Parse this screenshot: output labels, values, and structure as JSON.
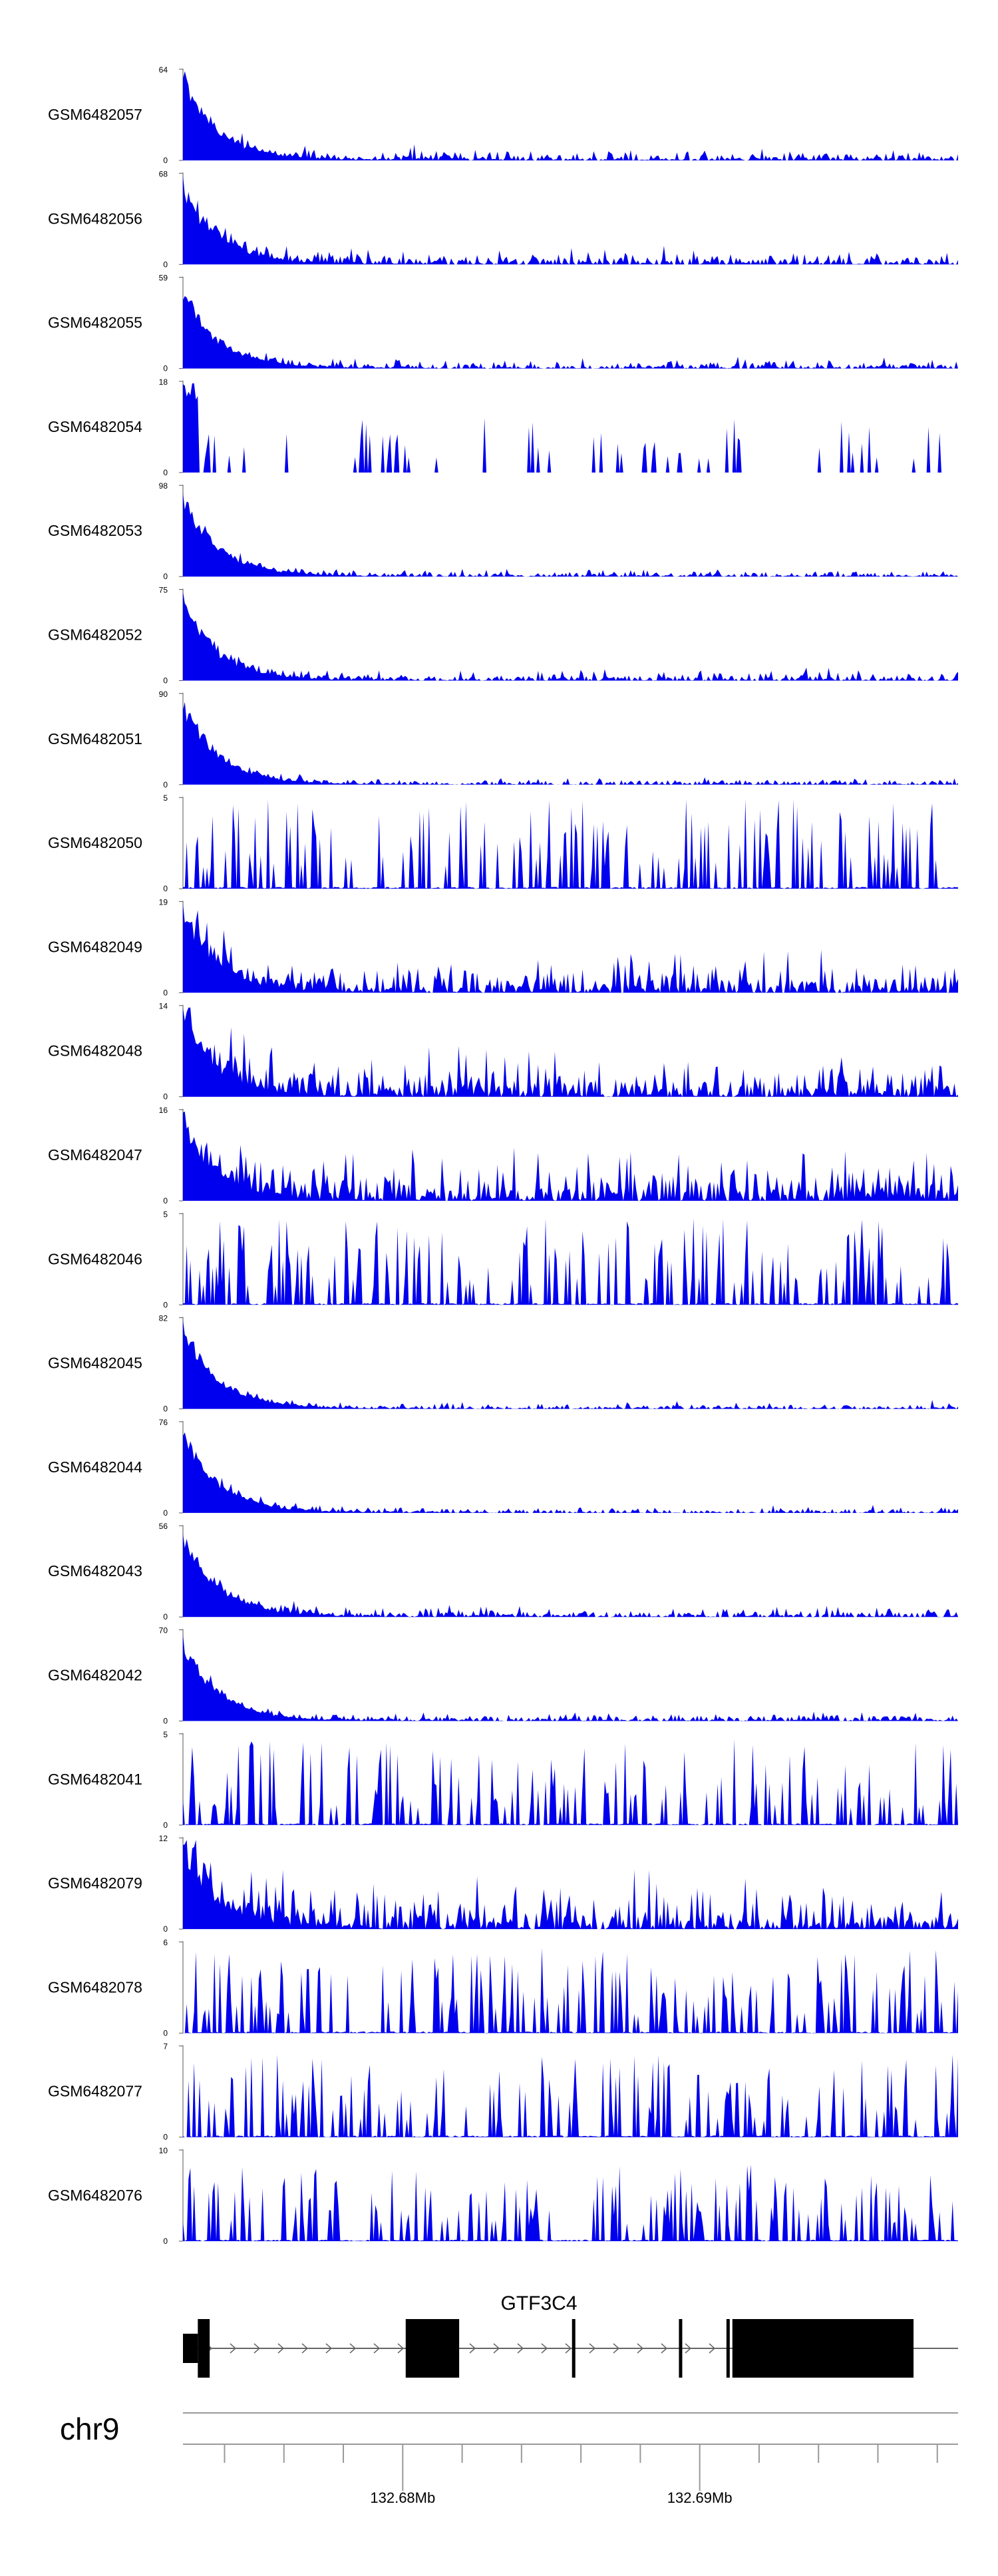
{
  "chart_data": {
    "type": "area",
    "color": "#0000ee",
    "tracks": [
      {
        "name": "GSM6482057",
        "ymax": 64,
        "ymin": 0,
        "profile": "decay",
        "tail": 0.08,
        "noise": 0.06,
        "peak": 1.0,
        "seed": 11
      },
      {
        "name": "GSM6482056",
        "ymax": 68,
        "ymin": 0,
        "profile": "decay",
        "tail": 0.12,
        "noise": 0.07,
        "peak": 0.95,
        "seed": 12
      },
      {
        "name": "GSM6482055",
        "ymax": 59,
        "ymin": 0,
        "profile": "decay",
        "tail": 0.07,
        "noise": 0.05,
        "peak": 0.95,
        "seed": 13
      },
      {
        "name": "GSM6482054",
        "ymax": 18,
        "ymin": 0,
        "profile": "sparse",
        "tail": 0.2,
        "noise": 0.45,
        "peak": 1.0,
        "seed": 14
      },
      {
        "name": "GSM6482053",
        "ymax": 98,
        "ymin": 0,
        "profile": "decay",
        "tail": 0.05,
        "noise": 0.04,
        "peak": 1.0,
        "seed": 15
      },
      {
        "name": "GSM6482052",
        "ymax": 75,
        "ymin": 0,
        "profile": "decay",
        "tail": 0.08,
        "noise": 0.05,
        "peak": 0.95,
        "seed": 16
      },
      {
        "name": "GSM6482051",
        "ymax": 90,
        "ymin": 0,
        "profile": "decay",
        "tail": 0.05,
        "noise": 0.04,
        "peak": 1.0,
        "seed": 17
      },
      {
        "name": "GSM6482050",
        "ymax": 5,
        "ymin": 0,
        "profile": "spiky",
        "tail": 0.3,
        "noise": 0.7,
        "peak": 1.0,
        "seed": 18
      },
      {
        "name": "GSM6482049",
        "ymax": 19,
        "ymin": 0,
        "profile": "decay",
        "tail": 0.3,
        "noise": 0.2,
        "peak": 1.0,
        "seed": 19
      },
      {
        "name": "GSM6482048",
        "ymax": 14,
        "ymin": 0,
        "profile": "decay",
        "tail": 0.3,
        "noise": 0.25,
        "peak": 1.0,
        "seed": 20
      },
      {
        "name": "GSM6482047",
        "ymax": 16,
        "ymin": 0,
        "profile": "decay",
        "tail": 0.35,
        "noise": 0.3,
        "peak": 0.9,
        "seed": 21
      },
      {
        "name": "GSM6482046",
        "ymax": 5,
        "ymin": 0,
        "profile": "spiky",
        "tail": 0.35,
        "noise": 0.65,
        "peak": 1.0,
        "seed": 22
      },
      {
        "name": "GSM6482045",
        "ymax": 82,
        "ymin": 0,
        "profile": "decay",
        "tail": 0.05,
        "noise": 0.04,
        "peak": 1.0,
        "seed": 23
      },
      {
        "name": "GSM6482044",
        "ymax": 76,
        "ymin": 0,
        "profile": "decay",
        "tail": 0.05,
        "noise": 0.04,
        "peak": 1.0,
        "seed": 24
      },
      {
        "name": "GSM6482043",
        "ymax": 56,
        "ymin": 0,
        "profile": "decay",
        "tail": 0.08,
        "noise": 0.06,
        "peak": 1.0,
        "seed": 25
      },
      {
        "name": "GSM6482042",
        "ymax": 70,
        "ymin": 0,
        "profile": "decay",
        "tail": 0.06,
        "noise": 0.05,
        "peak": 0.95,
        "seed": 26
      },
      {
        "name": "GSM6482041",
        "ymax": 5,
        "ymin": 0,
        "profile": "spiky",
        "tail": 0.35,
        "noise": 0.6,
        "peak": 1.0,
        "seed": 27
      },
      {
        "name": "GSM6482079",
        "ymax": 12,
        "ymin": 0,
        "profile": "decay",
        "tail": 0.3,
        "noise": 0.35,
        "peak": 1.0,
        "seed": 28
      },
      {
        "name": "GSM6482078",
        "ymax": 6,
        "ymin": 0,
        "profile": "spiky",
        "tail": 0.4,
        "noise": 0.6,
        "peak": 1.0,
        "seed": 29
      },
      {
        "name": "GSM6482077",
        "ymax": 7,
        "ymin": 0,
        "profile": "spiky",
        "tail": 0.4,
        "noise": 0.55,
        "peak": 1.0,
        "seed": 30
      },
      {
        "name": "GSM6482076",
        "ymax": 10,
        "ymin": 0,
        "profile": "spiky",
        "tail": 0.3,
        "noise": 0.45,
        "peak": 0.9,
        "seed": 31
      }
    ],
    "gene": {
      "name": "GTF3C4",
      "strand": "+",
      "start": 132.6726,
      "end": 132.6987,
      "exons": [
        {
          "start": 132.6726,
          "end": 132.6731,
          "type": "utr"
        },
        {
          "start": 132.6731,
          "end": 132.6735,
          "type": "cds"
        },
        {
          "start": 132.6801,
          "end": 132.6819,
          "type": "cds"
        },
        {
          "start": 132.6857,
          "end": 132.6858,
          "type": "cds"
        },
        {
          "start": 132.6893,
          "end": 132.6894,
          "type": "cds"
        },
        {
          "start": 132.6909,
          "end": 132.691,
          "type": "cds"
        },
        {
          "start": 132.6911,
          "end": 132.6972,
          "type": "cds"
        }
      ]
    },
    "axis": {
      "chromosome": "chr9",
      "range": [
        132.6726,
        132.6987
      ],
      "tick_labels": [
        {
          "value": 132.68,
          "label": "132.68Mb"
        },
        {
          "value": 132.69,
          "label": "132.69Mb"
        }
      ],
      "minor_step": 0.002
    }
  }
}
